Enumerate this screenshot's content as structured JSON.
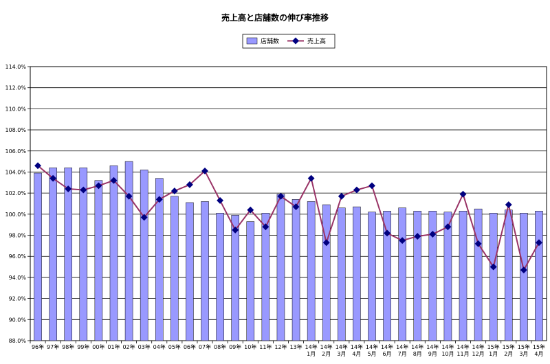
{
  "chart_data": {
    "type": "bar",
    "title": "売上高と店舗数の伸び率推移",
    "legend_position": "top-center",
    "grid": true,
    "ylim": [
      88.0,
      114.0
    ],
    "yticks": [
      "88.0%",
      "90.0%",
      "92.0%",
      "94.0%",
      "96.0%",
      "98.0%",
      "100.0%",
      "102.0%",
      "104.0%",
      "106.0%",
      "108.0%",
      "110.0%",
      "112.0%",
      "114.0%"
    ],
    "categories": [
      [
        "96年"
      ],
      [
        "97年"
      ],
      [
        "98年"
      ],
      [
        "99年"
      ],
      [
        "00年"
      ],
      [
        "01年"
      ],
      [
        "02年"
      ],
      [
        "03年"
      ],
      [
        "04年"
      ],
      [
        "05年"
      ],
      [
        "06年"
      ],
      [
        "07年"
      ],
      [
        "08年"
      ],
      [
        "09年"
      ],
      [
        "10年"
      ],
      [
        "11年"
      ],
      [
        "12年"
      ],
      [
        "13年"
      ],
      [
        "14年",
        "1月"
      ],
      [
        "14年",
        "2月"
      ],
      [
        "14年",
        "3月"
      ],
      [
        "14年",
        "4月"
      ],
      [
        "14年",
        "5月"
      ],
      [
        "14年",
        "6月"
      ],
      [
        "14年",
        "7月"
      ],
      [
        "14年",
        "8月"
      ],
      [
        "14年",
        "9月"
      ],
      [
        "14年",
        "10月"
      ],
      [
        "14年",
        "11月"
      ],
      [
        "14年",
        "12月"
      ],
      [
        "15年",
        "1月"
      ],
      [
        "15年",
        "2月"
      ],
      [
        "15年",
        "3月"
      ],
      [
        "15年",
        "4月"
      ]
    ],
    "series": [
      {
        "name": "店舗数",
        "kind": "bar",
        "color": "#9999ff",
        "values": [
          103.9,
          104.4,
          104.4,
          104.4,
          103.2,
          104.6,
          105.0,
          104.2,
          103.4,
          101.7,
          101.1,
          101.2,
          100.1,
          99.9,
          99.3,
          100.1,
          101.9,
          101.4,
          101.2,
          100.9,
          100.6,
          100.7,
          100.2,
          100.3,
          100.6,
          100.3,
          100.3,
          100.2,
          100.3,
          100.5,
          100.1,
          100.4,
          100.1,
          100.3
        ]
      },
      {
        "name": "売上高",
        "kind": "line",
        "color": "#993366",
        "marker_color": "#000080",
        "values": [
          104.6,
          103.4,
          102.4,
          102.3,
          102.7,
          103.2,
          101.7,
          99.7,
          101.4,
          102.2,
          102.8,
          104.1,
          101.3,
          98.5,
          100.4,
          98.8,
          101.7,
          100.7,
          103.4,
          97.3,
          101.7,
          102.3,
          102.7,
          98.2,
          97.5,
          97.9,
          98.1,
          98.8,
          101.9,
          97.2,
          95.0,
          100.9,
          94.7,
          97.3
        ]
      }
    ]
  }
}
